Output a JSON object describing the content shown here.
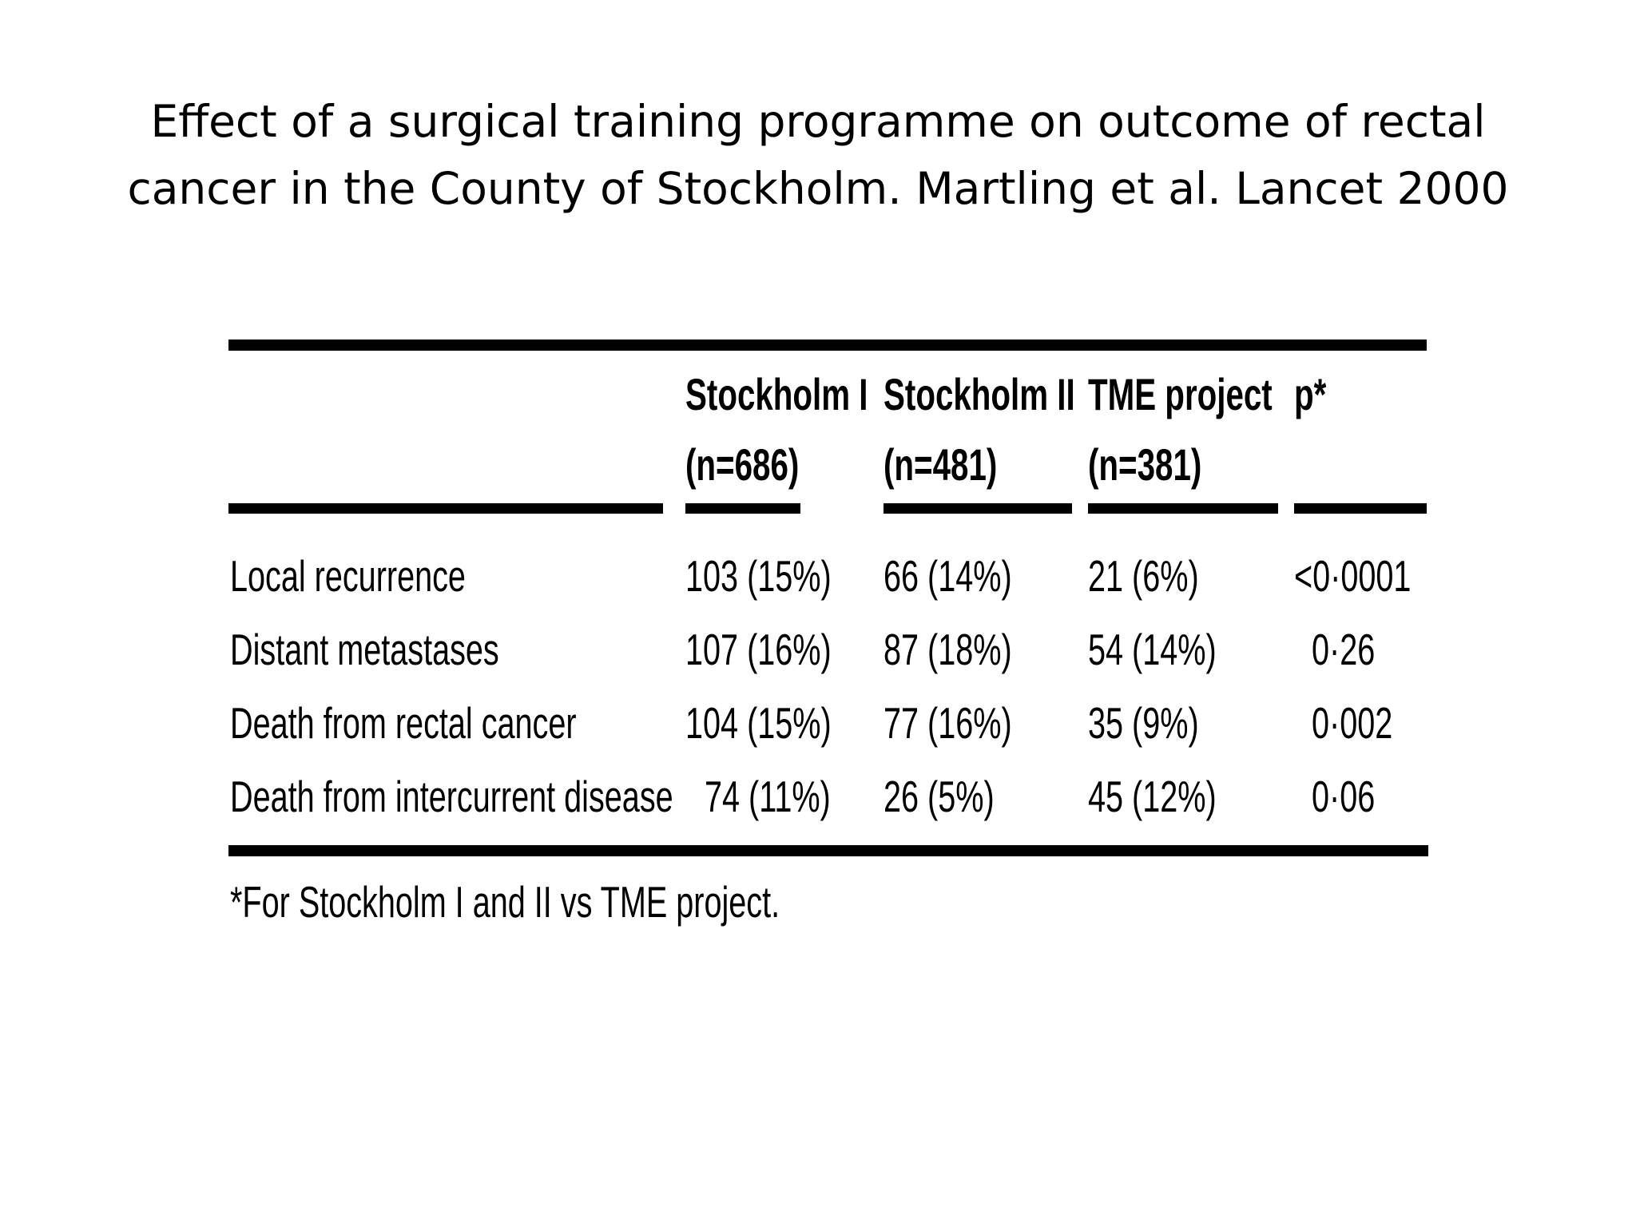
{
  "title": {
    "line1": "Effect of a surgical training programme on outcome of rectal",
    "line2": "cancer in the County of Stockholm. Martling et al. Lancet 2000"
  },
  "table": {
    "headers": [
      {
        "name": "Stockholm I",
        "n": "(n=686)"
      },
      {
        "name": "Stockholm II",
        "n": "(n=481)"
      },
      {
        "name": "TME project",
        "n": "(n=381)"
      },
      {
        "name": "p*",
        "n": ""
      }
    ],
    "rows": [
      {
        "label": "Local recurrence",
        "cells": [
          "103 (15%)",
          "66 (14%)",
          "21 (6%)",
          "<0·0001"
        ]
      },
      {
        "label": "Distant metastases",
        "cells": [
          "107 (16%)",
          "87 (18%)",
          "54 (14%)",
          "0·26"
        ]
      },
      {
        "label": "Death from rectal cancer",
        "cells": [
          "104 (15%)",
          "77 (16%)",
          "35 (9%)",
          "0·002"
        ]
      },
      {
        "label": "Death from intercurrent disease",
        "cells": [
          "74 (11%)",
          "26 (5%)",
          "45 (12%)",
          "0·06"
        ]
      }
    ],
    "footnote": "*For Stockholm I and II vs TME project."
  }
}
